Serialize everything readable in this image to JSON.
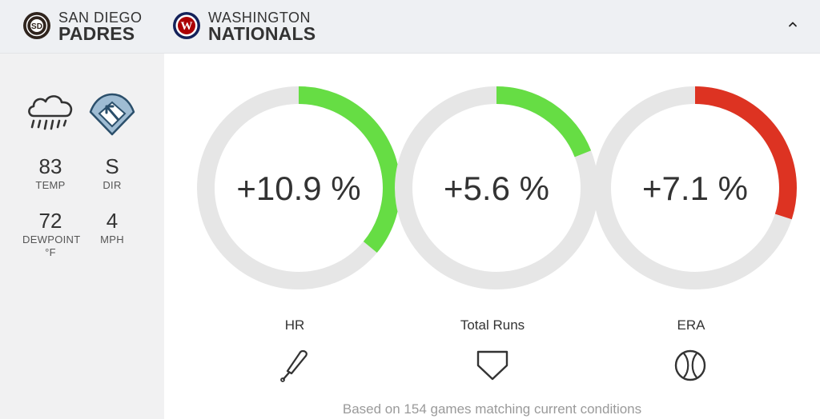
{
  "header": {
    "teams": [
      {
        "city": "SAN DIEGO",
        "name": "PADRES",
        "logo_icon": "padres-logo",
        "color": "#2f241d"
      },
      {
        "city": "WASHINGTON",
        "name": "NATIONALS",
        "logo_icon": "nationals-logo",
        "color": "#ab0003"
      }
    ],
    "collapse_icon": "chevron-up-icon"
  },
  "weather": {
    "condition_icon": "rain-cloud-icon",
    "wind_icon": "wind-direction-field-icon",
    "stats": [
      {
        "value": "83",
        "label": "TEMP"
      },
      {
        "value": "S",
        "label": "DIR"
      },
      {
        "value": "72",
        "label": "DEWPOINT °F"
      },
      {
        "value": "4",
        "label": "MPH"
      }
    ]
  },
  "metrics": [
    {
      "label": "HR",
      "value_text": "+10.9 %",
      "fill_fraction": 0.36,
      "color": "#66dd44",
      "icon": "baseball-bat-icon"
    },
    {
      "label": "Total Runs",
      "value_text": "+5.6 %",
      "fill_fraction": 0.19,
      "color": "#66dd44",
      "icon": "home-plate-icon"
    },
    {
      "label": "ERA",
      "value_text": "+7.1 %",
      "fill_fraction": 0.3,
      "color": "#dd3322",
      "icon": "baseball-icon"
    }
  ],
  "footer": {
    "note": "Based on 154 games matching current conditions"
  },
  "colors": {
    "track": "#e6e6e6",
    "positive": "#66dd44",
    "negative": "#dd3322"
  }
}
